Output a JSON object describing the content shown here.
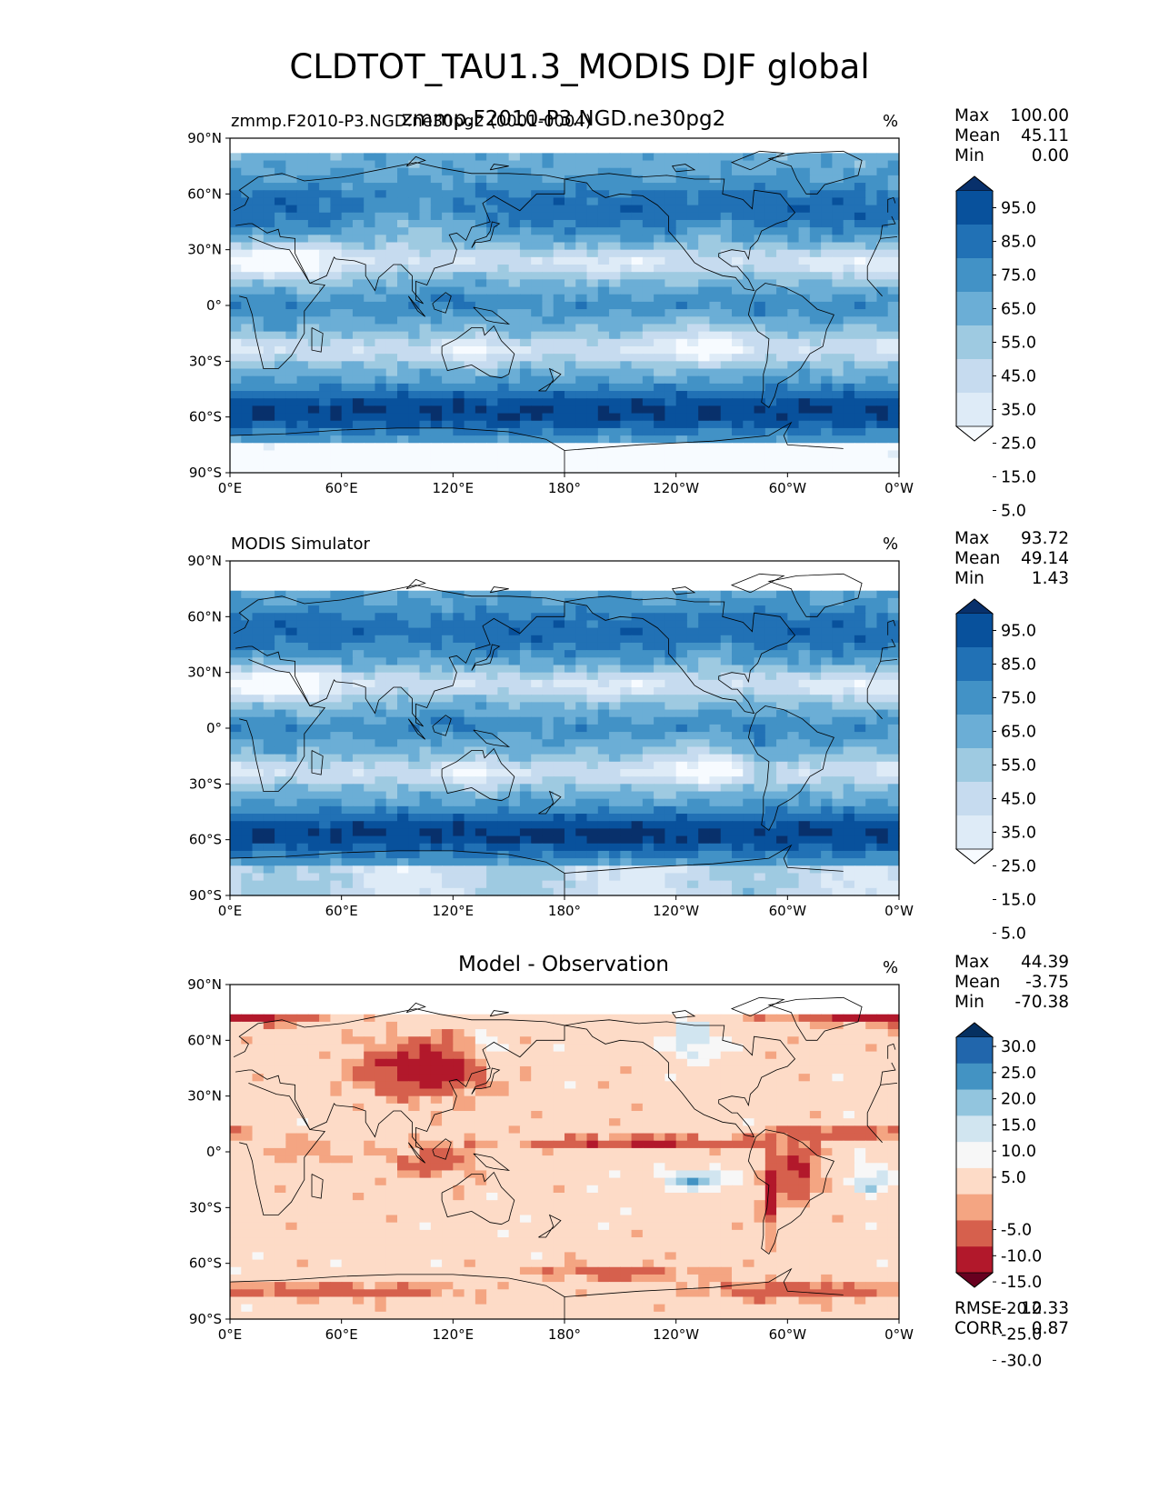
{
  "title": "CLDTOT_TAU1.3_MODIS DJF global",
  "colors": {
    "blues": [
      "#f7fbff",
      "#deebf7",
      "#c6dbef",
      "#9ecae1",
      "#6baed6",
      "#4292c6",
      "#2171b5",
      "#08519c",
      "#08306b"
    ],
    "rdbu": [
      "#67001f",
      "#b2182b",
      "#d6604d",
      "#f4a582",
      "#fddbc7",
      "#f7f7f7",
      "#d1e5f0",
      "#92c5de",
      "#4393c3",
      "#2166ac",
      "#053061"
    ]
  },
  "chart_data": [
    {
      "type": "heatmap",
      "panel": "test",
      "title_left": "zmmp.F2010-P3.NGD.ne30pg2 (0001-0004)",
      "title_center": "zmmp.F2010-P3.NGD.ne30pg2",
      "units": "%",
      "stats": {
        "max_label": "Max",
        "max": "100.00",
        "mean_label": "Mean",
        "mean": "45.11",
        "min_label": "Min",
        "min": "0.00"
      },
      "xticks": [
        "0°E",
        "60°E",
        "120°E",
        "180°",
        "120°W",
        "60°W",
        "0°W"
      ],
      "yticks": [
        "90°N",
        "60°N",
        "30°N",
        "0°",
        "30°S",
        "60°S",
        "90°S"
      ],
      "xlim": [
        0,
        360
      ],
      "ylim": [
        -90,
        90
      ],
      "colorbar": {
        "labels": [
          "95.0",
          "85.0",
          "75.0",
          "65.0",
          "55.0",
          "45.0",
          "35.0",
          "25.0",
          "15.0",
          "5.0"
        ]
      }
    },
    {
      "type": "heatmap",
      "panel": "reference",
      "title_left": "MODIS Simulator",
      "units": "%",
      "stats": {
        "max_label": "Max",
        "max": "93.72",
        "mean_label": "Mean",
        "mean": "49.14",
        "min_label": "Min",
        "min": "1.43"
      },
      "xticks": [
        "0°E",
        "60°E",
        "120°E",
        "180°",
        "120°W",
        "60°W",
        "0°W"
      ],
      "yticks": [
        "90°N",
        "60°N",
        "30°N",
        "0°",
        "30°S",
        "60°S",
        "90°S"
      ],
      "xlim": [
        0,
        360
      ],
      "ylim": [
        -90,
        90
      ],
      "colorbar": {
        "labels": [
          "95.0",
          "85.0",
          "75.0",
          "65.0",
          "55.0",
          "45.0",
          "35.0",
          "25.0",
          "15.0",
          "5.0"
        ]
      }
    },
    {
      "type": "heatmap",
      "panel": "difference",
      "title_center": "Model - Observation",
      "units": "%",
      "stats": {
        "max_label": "Max",
        "max": "44.39",
        "mean_label": "Mean",
        "mean": "-3.75",
        "min_label": "Min",
        "min": "-70.38"
      },
      "metrics": {
        "rmse_label": "RMSE",
        "rmse": "12.33",
        "corr_label": "CORR",
        "corr": "0.87"
      },
      "xticks": [
        "0°E",
        "60°E",
        "120°E",
        "180°",
        "120°W",
        "60°W",
        "0°W"
      ],
      "yticks": [
        "90°N",
        "60°N",
        "30°N",
        "0°",
        "30°S",
        "60°S",
        "90°S"
      ],
      "xlim": [
        0,
        360
      ],
      "ylim": [
        -90,
        90
      ],
      "colorbar": {
        "labels": [
          "30.0",
          "25.0",
          "20.0",
          "15.0",
          "10.0",
          "5.0",
          "-5.0",
          "-10.0",
          "-15.0",
          "-20.0",
          "-25.0",
          "-30.0"
        ]
      }
    }
  ]
}
